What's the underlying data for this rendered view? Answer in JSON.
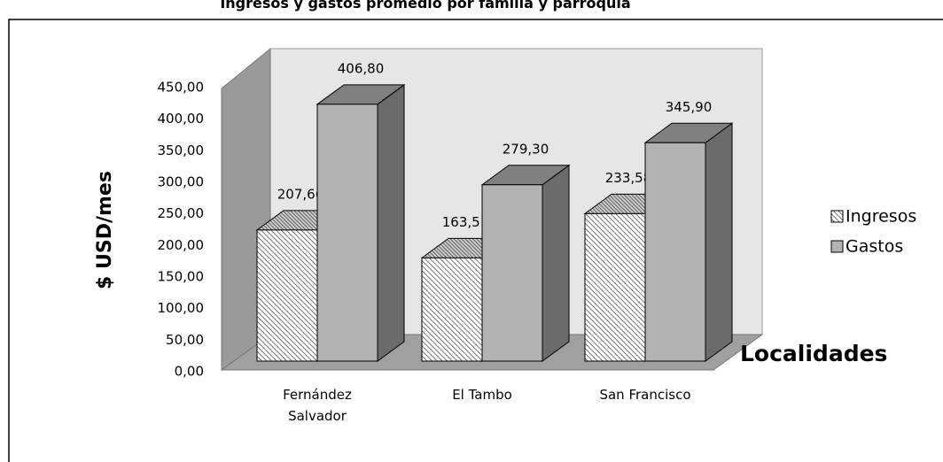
{
  "chart_data": {
    "type": "bar3d",
    "title": "Ingresos y gastos promedio por familia y parroquia",
    "y_label": "$ USD/mes",
    "x_label": "Localidades",
    "categories": [
      "Fernández Salvador",
      "El Tambo",
      "San Francisco"
    ],
    "series": [
      {
        "name": "Ingresos",
        "color": "#9a9a9a",
        "values": [
          207.66,
          163.51,
          233.58
        ],
        "value_labels": [
          "207,66",
          "163,51",
          "233,58"
        ]
      },
      {
        "name": "Gastos",
        "color": "#b3b3b3",
        "values": [
          406.8,
          279.3,
          345.9
        ],
        "value_labels": [
          "406,80",
          "279,30",
          "345,90"
        ]
      }
    ],
    "ylim": [
      0,
      450
    ],
    "yticks": [
      {
        "value": 0,
        "label": "0,00"
      },
      {
        "value": 50,
        "label": "50,00"
      },
      {
        "value": 100,
        "label": "100,00"
      },
      {
        "value": 150,
        "label": "150,00"
      },
      {
        "value": 200,
        "label": "200,00"
      },
      {
        "value": 250,
        "label": "250,00"
      },
      {
        "value": 300,
        "label": "300,00"
      },
      {
        "value": 350,
        "label": "350,00"
      },
      {
        "value": 400,
        "label": "400,00"
      },
      {
        "value": 450,
        "label": "450,00"
      }
    ],
    "legend": "right"
  }
}
